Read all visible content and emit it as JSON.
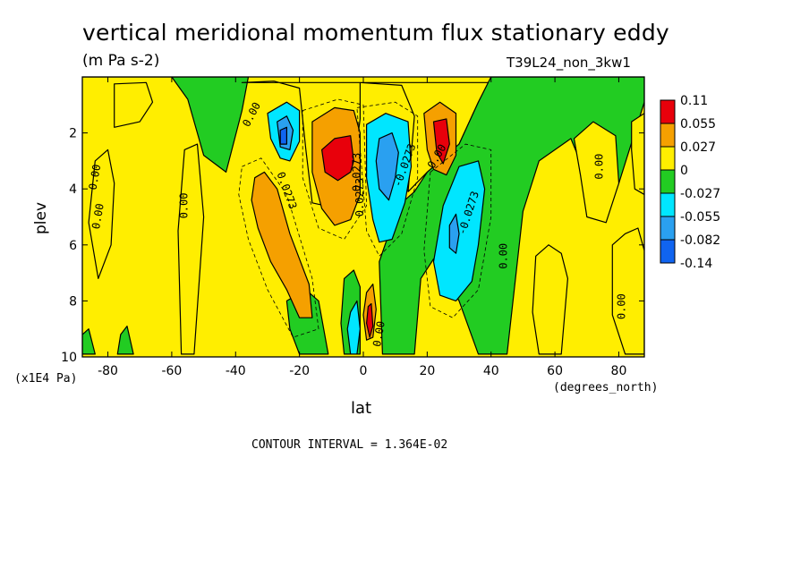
{
  "header": {
    "title": "vertical meridional momentum flux stationary eddy",
    "units": "(m Pa s-2)",
    "experiment": "T39L24_non_3kw1"
  },
  "footer": {
    "contour_interval": "CONTOUR INTERVAL = 1.364E-02"
  },
  "colors": {
    "red": "#e8000b",
    "orange": "#f5a000",
    "yellow": "#ffee00",
    "green": "#22cc22",
    "cyan": "#00e6ff",
    "lightblue": "#2aa0f0",
    "blue": "#1064f0"
  },
  "chart_data": {
    "type": "heatmap",
    "title": "vertical meridional momentum flux stationary eddy",
    "subtitle": "(m Pa s-2)",
    "xlabel": "lat",
    "xunit": "(degrees_north)",
    "ylabel": "plev",
    "yunit": "(x1E4 Pa)",
    "xlim": [
      -88,
      88
    ],
    "ylim": [
      10,
      0
    ],
    "xticks": [
      -80,
      -60,
      -40,
      -20,
      0,
      20,
      40,
      60,
      80
    ],
    "xtick_labels": [
      "-80",
      "-60",
      "-40",
      "-20",
      "0",
      "20",
      "40",
      "60",
      "80"
    ],
    "yticks": [
      2,
      4,
      6,
      8,
      10
    ],
    "ytick_labels": [
      "2",
      "4",
      "6",
      "8",
      "10"
    ],
    "contour_interval": 0.01364,
    "colorbar": {
      "labels": [
        "0.11",
        "0.055",
        "0.027",
        "0",
        "-0.027",
        "-0.055",
        "-0.082",
        "-0.14"
      ],
      "colors": [
        "red",
        "orange",
        "yellow",
        "green",
        "cyan",
        "lightblue",
        "blue"
      ]
    },
    "contour_labels": [
      {
        "text": "0.00",
        "x": -83,
        "y": 3.6,
        "rot": -80
      },
      {
        "text": "0.00",
        "x": -82,
        "y": 5.0,
        "rot": -80
      },
      {
        "text": "0.00",
        "x": -55,
        "y": 4.6,
        "rot": -90
      },
      {
        "text": "0.00",
        "x": -34,
        "y": 1.4,
        "rot": -62
      },
      {
        "text": "0.0273",
        "x": -25,
        "y": 4.1,
        "rot": 70
      },
      {
        "text": "0.0273",
        "x": -1,
        "y": 3.4,
        "rot": -90
      },
      {
        "text": "0.0273",
        "x": 0,
        "y": 4.3,
        "rot": -90
      },
      {
        "text": "-0.0273",
        "x": 14,
        "y": 3.2,
        "rot": -70
      },
      {
        "text": "-0.0273",
        "x": 34,
        "y": 4.9,
        "rot": -72
      },
      {
        "text": "0.00",
        "x": 24,
        "y": 2.9,
        "rot": -60
      },
      {
        "text": "0.00",
        "x": 6,
        "y": 9.2,
        "rot": -80
      },
      {
        "text": "0.00",
        "x": 45,
        "y": 6.4,
        "rot": -90
      },
      {
        "text": "0.00",
        "x": 75,
        "y": 3.2,
        "rot": -90
      },
      {
        "text": "0.00",
        "x": 82,
        "y": 8.2,
        "rot": -90
      }
    ],
    "regions": [
      {
        "level": "green",
        "shape": "poly",
        "points": [
          [
            -88,
            0
          ],
          [
            -60,
            0
          ],
          [
            -55,
            0.8
          ],
          [
            -50,
            2.8
          ],
          [
            -43,
            3.4
          ],
          [
            -38,
            1.2
          ],
          [
            -36,
            0
          ]
        ],
        "note": "polar band"
      },
      {
        "level": "yellow",
        "shape": "poly",
        "points": [
          [
            -78,
            0.25
          ],
          [
            -68,
            0.2
          ],
          [
            -66,
            0.9
          ],
          [
            -70,
            1.6
          ],
          [
            -78,
            1.8
          ]
        ]
      },
      {
        "level": "yellow",
        "shape": "poly",
        "points": [
          [
            -84,
            3.0
          ],
          [
            -80,
            2.6
          ],
          [
            -78,
            3.8
          ],
          [
            -79,
            6.0
          ],
          [
            -83,
            7.2
          ],
          [
            -86,
            5.2
          ]
        ]
      },
      {
        "level": "yellow",
        "shape": "poly",
        "points": [
          [
            -56,
            2.6
          ],
          [
            -52,
            2.4
          ],
          [
            -50,
            5.0
          ],
          [
            -53,
            9.9
          ],
          [
            -57,
            9.9
          ],
          [
            -58,
            5.5
          ]
        ]
      },
      {
        "level": "yellow",
        "shape": "poly",
        "points": [
          [
            -38,
            0.2
          ],
          [
            -28,
            0.15
          ],
          [
            -20,
            0.4
          ],
          [
            -18,
            2.6
          ],
          [
            -16,
            4.5
          ],
          [
            -8,
            4.7
          ],
          [
            -4,
            4.1
          ],
          [
            -1,
            1.5
          ],
          [
            -1,
            0.2
          ],
          [
            12,
            0.3
          ],
          [
            16,
            1.4
          ],
          [
            14,
            4.1
          ],
          [
            20,
            3.4
          ],
          [
            30,
            2.4
          ],
          [
            36,
            0.9
          ],
          [
            40,
            0.2
          ],
          [
            -38,
            0.2
          ]
        ]
      },
      {
        "level": "green",
        "shape": "poly",
        "points": [
          [
            40,
            0
          ],
          [
            88,
            0
          ],
          [
            88,
            0.9
          ],
          [
            80,
            3.8
          ],
          [
            70,
            3.6
          ],
          [
            65,
            2.2
          ],
          [
            55,
            3.0
          ],
          [
            50,
            4.8
          ],
          [
            45,
            9.9
          ],
          [
            36,
            9.9
          ],
          [
            30,
            8.0
          ],
          [
            22,
            6.5
          ],
          [
            18,
            7.2
          ],
          [
            16,
            9.9
          ],
          [
            6,
            9.9
          ],
          [
            5,
            6.6
          ],
          [
            8,
            5.6
          ],
          [
            12,
            4.5
          ],
          [
            16,
            4.1
          ],
          [
            20,
            3.4
          ],
          [
            30,
            2.4
          ],
          [
            36,
            0.9
          ]
        ]
      },
      {
        "level": "yellow",
        "shape": "poly",
        "points": [
          [
            66,
            2.2
          ],
          [
            72,
            1.6
          ],
          [
            79,
            2.1
          ],
          [
            80,
            3.8
          ],
          [
            76,
            5.2
          ],
          [
            70,
            5.0
          ],
          [
            68,
            3.5
          ]
        ]
      },
      {
        "level": "yellow",
        "shape": "poly",
        "points": [
          [
            78,
            6.0
          ],
          [
            82,
            5.6
          ],
          [
            86,
            5.4
          ],
          [
            88,
            6.2
          ],
          [
            88,
            9.9
          ],
          [
            82,
            9.9
          ],
          [
            78,
            8.5
          ]
        ]
      },
      {
        "level": "yellow",
        "shape": "poly",
        "points": [
          [
            54,
            6.4
          ],
          [
            58,
            6.0
          ],
          [
            62,
            6.3
          ],
          [
            64,
            7.2
          ],
          [
            62,
            9.9
          ],
          [
            55,
            9.9
          ],
          [
            53,
            8.4
          ]
        ]
      },
      {
        "level": "yellow",
        "shape": "poly",
        "points": [
          [
            84,
            1.6
          ],
          [
            88,
            1.3
          ],
          [
            88,
            4.2
          ],
          [
            85,
            4.0
          ],
          [
            84,
            2.6
          ]
        ]
      },
      {
        "level": "green",
        "shape": "poly",
        "points": [
          [
            -24,
            8.0
          ],
          [
            -18,
            7.6
          ],
          [
            -14,
            8.0
          ],
          [
            -11,
            9.9
          ],
          [
            -20,
            9.9
          ],
          [
            -23,
            9.0
          ]
        ]
      },
      {
        "level": "green",
        "shape": "poly",
        "points": [
          [
            -76,
            9.2
          ],
          [
            -74,
            8.9
          ],
          [
            -72,
            9.9
          ],
          [
            -77,
            9.9
          ]
        ]
      },
      {
        "level": "green",
        "shape": "poly",
        "points": [
          [
            -88,
            9.2
          ],
          [
            -86,
            9.0
          ],
          [
            -84,
            9.9
          ],
          [
            -88,
            9.9
          ]
        ]
      },
      {
        "level": "green",
        "shape": "poly",
        "points": [
          [
            -6,
            7.2
          ],
          [
            -3,
            6.9
          ],
          [
            -1,
            7.5
          ],
          [
            -1,
            9.9
          ],
          [
            -6,
            9.9
          ],
          [
            -7,
            8.8
          ]
        ]
      },
      {
        "level": "cyan",
        "shape": "poly",
        "points": [
          [
            -4,
            8.4
          ],
          [
            -2,
            8.0
          ],
          [
            -1,
            9.0
          ],
          [
            -2,
            9.9
          ],
          [
            -4,
            9.9
          ],
          [
            -5,
            9.0
          ]
        ]
      },
      {
        "level": "orange",
        "shape": "poly",
        "points": [
          [
            -34,
            3.6
          ],
          [
            -31,
            3.4
          ],
          [
            -27,
            4.0
          ],
          [
            -23,
            5.6
          ],
          [
            -17,
            7.4
          ],
          [
            -16,
            8.6
          ],
          [
            -20,
            8.6
          ],
          [
            -24,
            7.6
          ],
          [
            -29,
            6.6
          ],
          [
            -33,
            5.4
          ],
          [
            -35,
            4.4
          ]
        ]
      },
      {
        "level": "cyan",
        "shape": "poly",
        "points": [
          [
            -30,
            1.3
          ],
          [
            -24,
            0.9
          ],
          [
            -20,
            1.2
          ],
          [
            -20,
            2.3
          ],
          [
            -23,
            3.0
          ],
          [
            -26,
            2.9
          ],
          [
            -29,
            2.2
          ]
        ]
      },
      {
        "level": "lightblue",
        "shape": "poly",
        "points": [
          [
            -27,
            1.6
          ],
          [
            -24,
            1.4
          ],
          [
            -22,
            1.9
          ],
          [
            -23,
            2.6
          ],
          [
            -26,
            2.5
          ]
        ]
      },
      {
        "level": "blue",
        "shape": "poly",
        "points": [
          [
            -26,
            1.9
          ],
          [
            -24,
            1.8
          ],
          [
            -24,
            2.4
          ],
          [
            -26,
            2.4
          ]
        ]
      },
      {
        "level": "orange",
        "shape": "poly",
        "points": [
          [
            -16,
            1.6
          ],
          [
            -9,
            1.1
          ],
          [
            -3,
            1.2
          ],
          [
            -1,
            2.0
          ],
          [
            -1,
            4.2
          ],
          [
            -4,
            5.1
          ],
          [
            -9,
            5.3
          ],
          [
            -13,
            4.7
          ],
          [
            -16,
            3.4
          ]
        ]
      },
      {
        "level": "red",
        "shape": "poly",
        "points": [
          [
            -13,
            2.6
          ],
          [
            -9,
            2.2
          ],
          [
            -4,
            2.1
          ],
          [
            -3,
            3.0
          ],
          [
            -4,
            3.4
          ],
          [
            -8,
            3.7
          ],
          [
            -12,
            3.4
          ]
        ]
      },
      {
        "level": "cyan",
        "shape": "poly",
        "points": [
          [
            1,
            1.7
          ],
          [
            7,
            1.3
          ],
          [
            14,
            1.6
          ],
          [
            15,
            3.2
          ],
          [
            13,
            4.5
          ],
          [
            9,
            5.8
          ],
          [
            5,
            5.9
          ],
          [
            3,
            5.1
          ],
          [
            1,
            3.6
          ]
        ]
      },
      {
        "level": "lightblue",
        "shape": "poly",
        "points": [
          [
            5,
            2.2
          ],
          [
            9,
            2.0
          ],
          [
            11,
            2.7
          ],
          [
            10,
            3.6
          ],
          [
            8,
            4.4
          ],
          [
            5,
            4.0
          ],
          [
            4,
            3.0
          ]
        ]
      },
      {
        "level": "orange",
        "shape": "poly",
        "points": [
          [
            19,
            1.3
          ],
          [
            24,
            0.9
          ],
          [
            29,
            1.3
          ],
          [
            29,
            2.8
          ],
          [
            26,
            3.5
          ],
          [
            22,
            3.3
          ],
          [
            20,
            2.6
          ]
        ]
      },
      {
        "level": "red",
        "shape": "poly",
        "points": [
          [
            22,
            1.6
          ],
          [
            26,
            1.5
          ],
          [
            27,
            2.4
          ],
          [
            25,
            3.1
          ],
          [
            23,
            2.7
          ]
        ]
      },
      {
        "level": "cyan",
        "shape": "poly",
        "points": [
          [
            25,
            4.6
          ],
          [
            30,
            3.2
          ],
          [
            36,
            3.0
          ],
          [
            38,
            4.0
          ],
          [
            36,
            6.0
          ],
          [
            34,
            7.3
          ],
          [
            29,
            8.0
          ],
          [
            24,
            7.8
          ],
          [
            22,
            6.6
          ]
        ]
      },
      {
        "level": "lightblue",
        "shape": "poly",
        "points": [
          [
            27,
            5.3
          ],
          [
            29,
            4.9
          ],
          [
            30,
            5.6
          ],
          [
            29,
            6.3
          ],
          [
            27,
            6.1
          ]
        ]
      },
      {
        "level": "orange",
        "shape": "poly",
        "points": [
          [
            1,
            7.7
          ],
          [
            3,
            7.4
          ],
          [
            4,
            8.3
          ],
          [
            3,
            9.3
          ],
          [
            1,
            9.4
          ],
          [
            0,
            8.5
          ]
        ]
      },
      {
        "level": "red",
        "shape": "poly",
        "points": [
          [
            1.5,
            8.2
          ],
          [
            2.5,
            8.1
          ],
          [
            3,
            8.9
          ],
          [
            2,
            9.3
          ],
          [
            1,
            8.8
          ]
        ]
      }
    ]
  }
}
